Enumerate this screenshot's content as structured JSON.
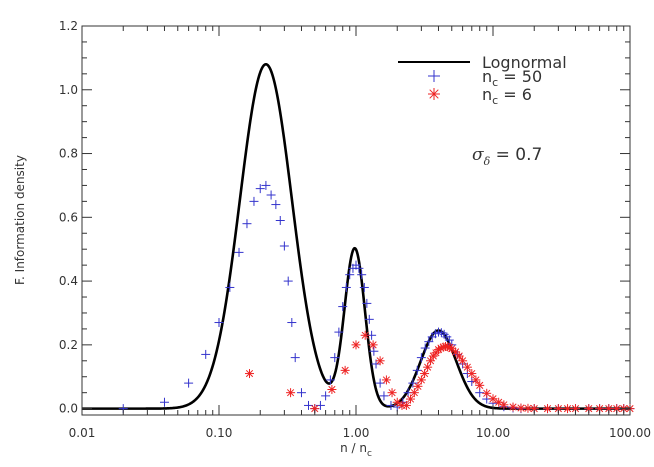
{
  "chart_data": {
    "type": "line",
    "xlabel": "n / n_c",
    "ylabel": "F. Information density",
    "xscale": "log",
    "xlim": [
      0.01,
      100
    ],
    "ylim": [
      -0.02,
      1.2
    ],
    "grid": false,
    "legend_position": "top-right",
    "x_ticks": [
      {
        "value": 0.01,
        "label": "0.01"
      },
      {
        "value": 0.1,
        "label": "0.10"
      },
      {
        "value": 1,
        "label": "1.00"
      },
      {
        "value": 10,
        "label": "10.00"
      },
      {
        "value": 100,
        "label": "100.00"
      }
    ],
    "y_ticks": [
      {
        "value": 0.0,
        "label": "0.0"
      },
      {
        "value": 0.2,
        "label": "0.2"
      },
      {
        "value": 0.4,
        "label": "0.4"
      },
      {
        "value": 0.6,
        "label": "0.6"
      },
      {
        "value": 0.8,
        "label": "0.8"
      },
      {
        "value": 1.0,
        "label": "1.0"
      },
      {
        "value": 1.2,
        "label": "1.2"
      }
    ],
    "annotation": "σ_δ = 0.7",
    "series": [
      {
        "name": "Lognormal",
        "style": "line",
        "color": "#000000",
        "peaks": [
          {
            "x": 0.22,
            "amplitude": 1.08,
            "width_dex": 0.19
          },
          {
            "x": 0.98,
            "amplitude": 0.5,
            "width_dex": 0.075
          },
          {
            "x": 4.0,
            "amplitude": 0.245,
            "width_dex": 0.13
          }
        ]
      },
      {
        "name": "n_c = 50",
        "style": "plus",
        "color": "#3333cc",
        "points": [
          [
            0.02,
            0.0
          ],
          [
            0.04,
            0.02
          ],
          [
            0.06,
            0.08
          ],
          [
            0.08,
            0.17
          ],
          [
            0.1,
            0.27
          ],
          [
            0.12,
            0.38
          ],
          [
            0.14,
            0.49
          ],
          [
            0.16,
            0.58
          ],
          [
            0.18,
            0.65
          ],
          [
            0.2,
            0.69
          ],
          [
            0.22,
            0.7
          ],
          [
            0.24,
            0.67
          ],
          [
            0.26,
            0.64
          ],
          [
            0.28,
            0.59
          ],
          [
            0.3,
            0.51
          ],
          [
            0.32,
            0.4
          ],
          [
            0.34,
            0.27
          ],
          [
            0.36,
            0.16
          ],
          [
            0.4,
            0.05
          ],
          [
            0.45,
            0.01
          ],
          [
            0.5,
            0.0
          ],
          [
            0.55,
            0.01
          ],
          [
            0.6,
            0.04
          ],
          [
            0.65,
            0.09
          ],
          [
            0.7,
            0.16
          ],
          [
            0.75,
            0.24
          ],
          [
            0.8,
            0.32
          ],
          [
            0.85,
            0.38
          ],
          [
            0.9,
            0.42
          ],
          [
            0.95,
            0.44
          ],
          [
            1.0,
            0.45
          ],
          [
            1.05,
            0.44
          ],
          [
            1.1,
            0.42
          ],
          [
            1.15,
            0.38
          ],
          [
            1.2,
            0.33
          ],
          [
            1.25,
            0.28
          ],
          [
            1.3,
            0.23
          ],
          [
            1.35,
            0.18
          ],
          [
            1.4,
            0.14
          ],
          [
            1.5,
            0.08
          ],
          [
            1.6,
            0.04
          ],
          [
            1.8,
            0.01
          ],
          [
            2.0,
            0.005
          ],
          [
            2.2,
            0.02
          ],
          [
            2.4,
            0.05
          ],
          [
            2.6,
            0.08
          ],
          [
            2.8,
            0.12
          ],
          [
            3.0,
            0.16
          ],
          [
            3.2,
            0.19
          ],
          [
            3.4,
            0.21
          ],
          [
            3.6,
            0.225
          ],
          [
            3.8,
            0.235
          ],
          [
            4.0,
            0.24
          ],
          [
            4.2,
            0.238
          ],
          [
            4.4,
            0.233
          ],
          [
            4.6,
            0.225
          ],
          [
            4.8,
            0.215
          ],
          [
            5.0,
            0.2
          ],
          [
            5.5,
            0.17
          ],
          [
            6.0,
            0.14
          ],
          [
            6.5,
            0.11
          ],
          [
            7.0,
            0.085
          ],
          [
            8.0,
            0.05
          ],
          [
            9.0,
            0.03
          ],
          [
            10.0,
            0.017
          ],
          [
            12.0,
            0.006
          ],
          [
            14.0,
            0.002
          ],
          [
            16.0,
            0.0
          ],
          [
            20.0,
            0.0
          ],
          [
            25.0,
            0.0
          ],
          [
            30.0,
            0.0
          ],
          [
            40.0,
            0.0
          ],
          [
            50.0,
            0.0
          ],
          [
            60.0,
            0.0
          ],
          [
            70.0,
            0.0
          ],
          [
            80.0,
            0.0
          ],
          [
            90.0,
            0.0
          ],
          [
            100.0,
            0.0
          ]
        ]
      },
      {
        "name": "n_c = 6",
        "style": "asterisk",
        "color": "#ee2222",
        "points": [
          [
            0.167,
            0.11
          ],
          [
            0.333,
            0.05
          ],
          [
            0.5,
            0.0
          ],
          [
            0.667,
            0.06
          ],
          [
            0.833,
            0.12
          ],
          [
            1.0,
            0.2
          ],
          [
            1.167,
            0.23
          ],
          [
            1.333,
            0.2
          ],
          [
            1.5,
            0.15
          ],
          [
            1.667,
            0.09
          ],
          [
            1.833,
            0.05
          ],
          [
            2.0,
            0.02
          ],
          [
            2.167,
            0.01
          ],
          [
            2.333,
            0.01
          ],
          [
            2.5,
            0.03
          ],
          [
            2.667,
            0.05
          ],
          [
            2.833,
            0.07
          ],
          [
            3.0,
            0.09
          ],
          [
            3.167,
            0.11
          ],
          [
            3.333,
            0.13
          ],
          [
            3.5,
            0.15
          ],
          [
            3.667,
            0.165
          ],
          [
            3.833,
            0.175
          ],
          [
            4.0,
            0.185
          ],
          [
            4.167,
            0.19
          ],
          [
            4.333,
            0.193
          ],
          [
            4.5,
            0.195
          ],
          [
            4.667,
            0.194
          ],
          [
            4.833,
            0.192
          ],
          [
            5.0,
            0.188
          ],
          [
            5.333,
            0.178
          ],
          [
            5.667,
            0.165
          ],
          [
            6.0,
            0.15
          ],
          [
            6.5,
            0.13
          ],
          [
            7.0,
            0.11
          ],
          [
            7.5,
            0.09
          ],
          [
            8.0,
            0.073
          ],
          [
            9.0,
            0.048
          ],
          [
            10.0,
            0.031
          ],
          [
            11.0,
            0.02
          ],
          [
            12.0,
            0.012
          ],
          [
            14.0,
            0.005
          ],
          [
            16.0,
            0.002
          ],
          [
            18.0,
            0.001
          ],
          [
            20.0,
            0.0
          ],
          [
            25.0,
            0.0
          ],
          [
            30.0,
            0.0
          ],
          [
            35.0,
            0.0
          ],
          [
            40.0,
            0.0
          ],
          [
            50.0,
            0.0
          ],
          [
            60.0,
            0.0
          ],
          [
            70.0,
            0.0
          ],
          [
            80.0,
            0.0
          ],
          [
            90.0,
            0.0
          ],
          [
            100.0,
            0.0
          ]
        ]
      }
    ]
  }
}
